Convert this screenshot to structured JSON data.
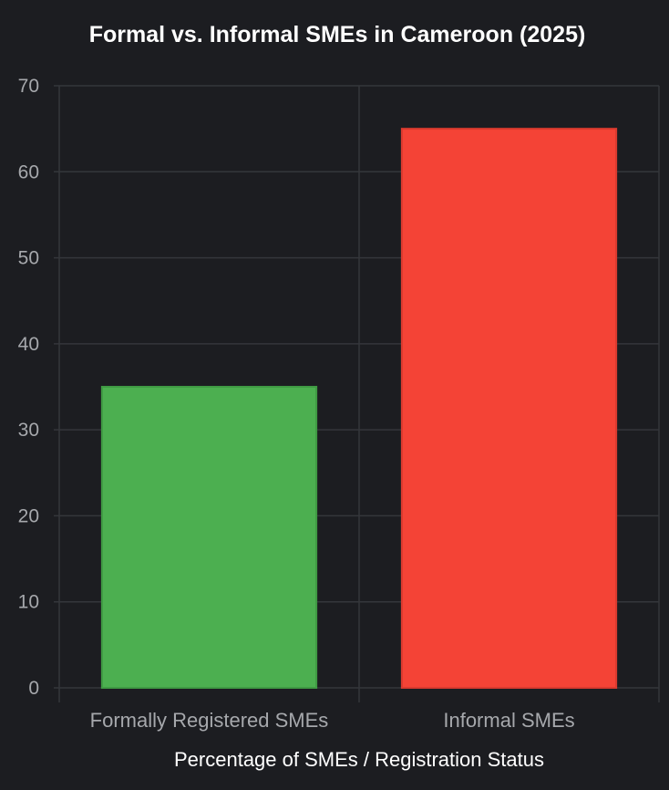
{
  "chart_data": {
    "type": "bar",
    "title": "Formal vs. Informal SMEs in Cameroon (2025)",
    "xlabel": "Percentage of SMEs / Registration Status",
    "ylabel": "",
    "categories": [
      "Formally Registered SMEs",
      "Informal SMEs"
    ],
    "values": [
      35,
      65
    ],
    "ylim": [
      0,
      70
    ],
    "yticks": [
      0,
      10,
      20,
      30,
      40,
      50,
      60,
      70
    ],
    "grid": true,
    "legend": "none",
    "colors": {
      "bars": [
        "#4caf50",
        "#f44336"
      ],
      "bar_borders": [
        "#3f9a43",
        "#d93a2f"
      ],
      "grid": "#34363b",
      "background": "#1c1d21"
    }
  }
}
